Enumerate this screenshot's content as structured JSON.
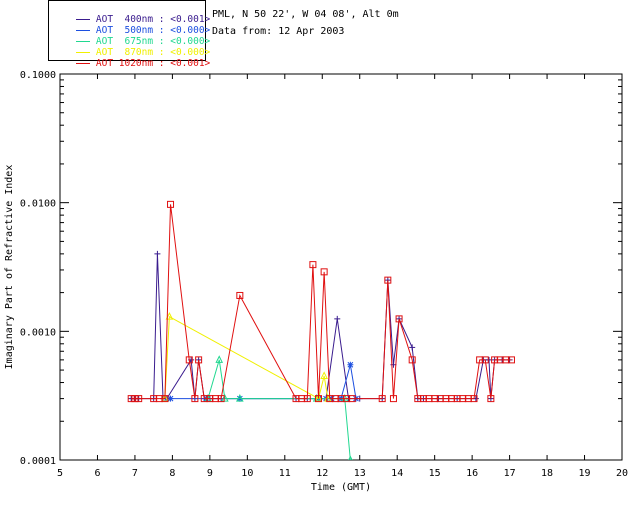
{
  "legend": [
    {
      "label": "AOT  400nm : <0.001>",
      "color": "#3a1c8e"
    },
    {
      "label": "AOT  500nm : <0.000>",
      "color": "#1c4fe0"
    },
    {
      "label": "AOT  675nm : <0.000>",
      "color": "#20d890"
    },
    {
      "label": "AOT  870nm : <0.000>",
      "color": "#f0f000"
    },
    {
      "label": "AOT 1020nm : <0.001>",
      "color": "#e01010"
    }
  ],
  "info": {
    "site": "PML, N 50 22', W 04 08', Alt 0m",
    "date": "Data from: 12 Apr 2003"
  },
  "chart_data": {
    "type": "line",
    "xlabel": "Time (GMT)",
    "ylabel": "Imaginary Part of Refractive Index",
    "xlim": [
      5,
      20
    ],
    "ylim": [
      0.0001,
      0.1
    ],
    "yscale": "log",
    "xticks": [
      "5",
      "6",
      "7",
      "8",
      "9",
      "10",
      "11",
      "12",
      "13",
      "14",
      "15",
      "16",
      "17",
      "18",
      "19",
      "20"
    ],
    "yticks": [
      {
        "value": 0.0001,
        "label": "0.0001"
      },
      {
        "value": 0.001,
        "label": "0.0010"
      },
      {
        "value": 0.01,
        "label": "0.0100"
      },
      {
        "value": 0.1,
        "label": "0.1000"
      }
    ],
    "series": [
      {
        "name": "AOT 400nm",
        "color": "#3a1c8e",
        "marker": "plus",
        "points": [
          [
            6.9,
            0.0003
          ],
          [
            7.0,
            0.0003
          ],
          [
            7.1,
            0.0003
          ],
          [
            7.5,
            0.0003
          ],
          [
            7.6,
            0.004
          ],
          [
            7.75,
            0.0003
          ],
          [
            7.85,
            0.0003
          ],
          [
            8.5,
            0.0006
          ],
          [
            8.6,
            0.0003
          ],
          [
            8.7,
            0.0006
          ],
          [
            8.85,
            0.0003
          ],
          [
            9.0,
            0.0003
          ],
          [
            9.3,
            0.0003
          ],
          [
            9.8,
            0.0003
          ],
          [
            11.3,
            0.0003
          ],
          [
            11.6,
            0.0003
          ],
          [
            11.95,
            0.0003
          ],
          [
            12.1,
            0.0003
          ],
          [
            12.4,
            0.00125
          ],
          [
            12.7,
            0.0003
          ],
          [
            13.0,
            0.0003
          ],
          [
            13.6,
            0.0003
          ],
          [
            13.75,
            0.0025
          ],
          [
            13.9,
            0.00055
          ],
          [
            14.05,
            0.00125
          ],
          [
            14.4,
            0.00075
          ],
          [
            14.55,
            0.0003
          ],
          [
            14.7,
            0.0003
          ],
          [
            15.1,
            0.0003
          ],
          [
            15.6,
            0.0003
          ],
          [
            16.1,
            0.0003
          ],
          [
            16.3,
            0.0006
          ],
          [
            16.45,
            0.0006
          ],
          [
            16.5,
            0.0003
          ],
          [
            16.6,
            0.0006
          ],
          [
            16.8,
            0.0006
          ],
          [
            17.0,
            0.0006
          ]
        ]
      },
      {
        "name": "AOT 500nm",
        "color": "#1c4fe0",
        "marker": "star",
        "points": [
          [
            7.85,
            0.0003
          ],
          [
            7.95,
            0.0003
          ],
          [
            8.9,
            0.0003
          ],
          [
            9.8,
            0.0003
          ],
          [
            11.9,
            0.0003
          ],
          [
            12.1,
            0.0003
          ],
          [
            12.25,
            0.0003
          ],
          [
            12.5,
            0.0003
          ],
          [
            12.75,
            0.00055
          ],
          [
            12.9,
            0.0003
          ]
        ]
      },
      {
        "name": "AOT 675nm",
        "color": "#20d890",
        "marker": "triangle",
        "points": [
          [
            8.95,
            0.0003
          ],
          [
            9.25,
            0.0006
          ],
          [
            9.4,
            0.0003
          ],
          [
            9.8,
            0.0003
          ],
          [
            11.85,
            0.0003
          ],
          [
            12.6,
            0.0003
          ],
          [
            12.75,
            0.0001
          ]
        ]
      },
      {
        "name": "AOT 870nm",
        "color": "#f0f000",
        "marker": "triangle",
        "points": [
          [
            7.8,
            0.0003
          ],
          [
            7.92,
            0.0013
          ],
          [
            11.9,
            0.0003
          ],
          [
            12.05,
            0.00045
          ],
          [
            12.15,
            0.0003
          ]
        ]
      },
      {
        "name": "AOT 1020nm",
        "color": "#e01010",
        "marker": "square",
        "points": [
          [
            6.9,
            0.0003
          ],
          [
            7.0,
            0.0003
          ],
          [
            7.1,
            0.0003
          ],
          [
            7.5,
            0.0003
          ],
          [
            7.65,
            0.0003
          ],
          [
            7.8,
            0.0003
          ],
          [
            7.95,
            0.0097
          ],
          [
            8.45,
            0.0006
          ],
          [
            8.6,
            0.0003
          ],
          [
            8.7,
            0.0006
          ],
          [
            8.85,
            0.0003
          ],
          [
            9.0,
            0.0003
          ],
          [
            9.15,
            0.0003
          ],
          [
            9.3,
            0.0003
          ],
          [
            9.8,
            0.0019
          ],
          [
            11.3,
            0.0003
          ],
          [
            11.45,
            0.0003
          ],
          [
            11.6,
            0.0003
          ],
          [
            11.75,
            0.0033
          ],
          [
            11.9,
            0.0003
          ],
          [
            12.05,
            0.0029
          ],
          [
            12.2,
            0.0003
          ],
          [
            12.35,
            0.0003
          ],
          [
            12.5,
            0.0003
          ],
          [
            12.65,
            0.0003
          ],
          [
            12.8,
            0.0003
          ],
          [
            13.6,
            0.0003
          ],
          [
            13.75,
            0.0025
          ],
          [
            13.9,
            0.0003
          ],
          [
            14.05,
            0.00125
          ],
          [
            14.4,
            0.0006
          ],
          [
            14.55,
            0.0003
          ],
          [
            14.7,
            0.0003
          ],
          [
            14.85,
            0.0003
          ],
          [
            15.0,
            0.0003
          ],
          [
            15.15,
            0.0003
          ],
          [
            15.3,
            0.0003
          ],
          [
            15.45,
            0.0003
          ],
          [
            15.6,
            0.0003
          ],
          [
            15.75,
            0.0003
          ],
          [
            15.9,
            0.0003
          ],
          [
            16.05,
            0.0003
          ],
          [
            16.2,
            0.0006
          ],
          [
            16.35,
            0.0006
          ],
          [
            16.5,
            0.0003
          ],
          [
            16.6,
            0.0006
          ],
          [
            16.75,
            0.0006
          ],
          [
            16.9,
            0.0006
          ],
          [
            17.05,
            0.0006
          ]
        ]
      }
    ]
  }
}
